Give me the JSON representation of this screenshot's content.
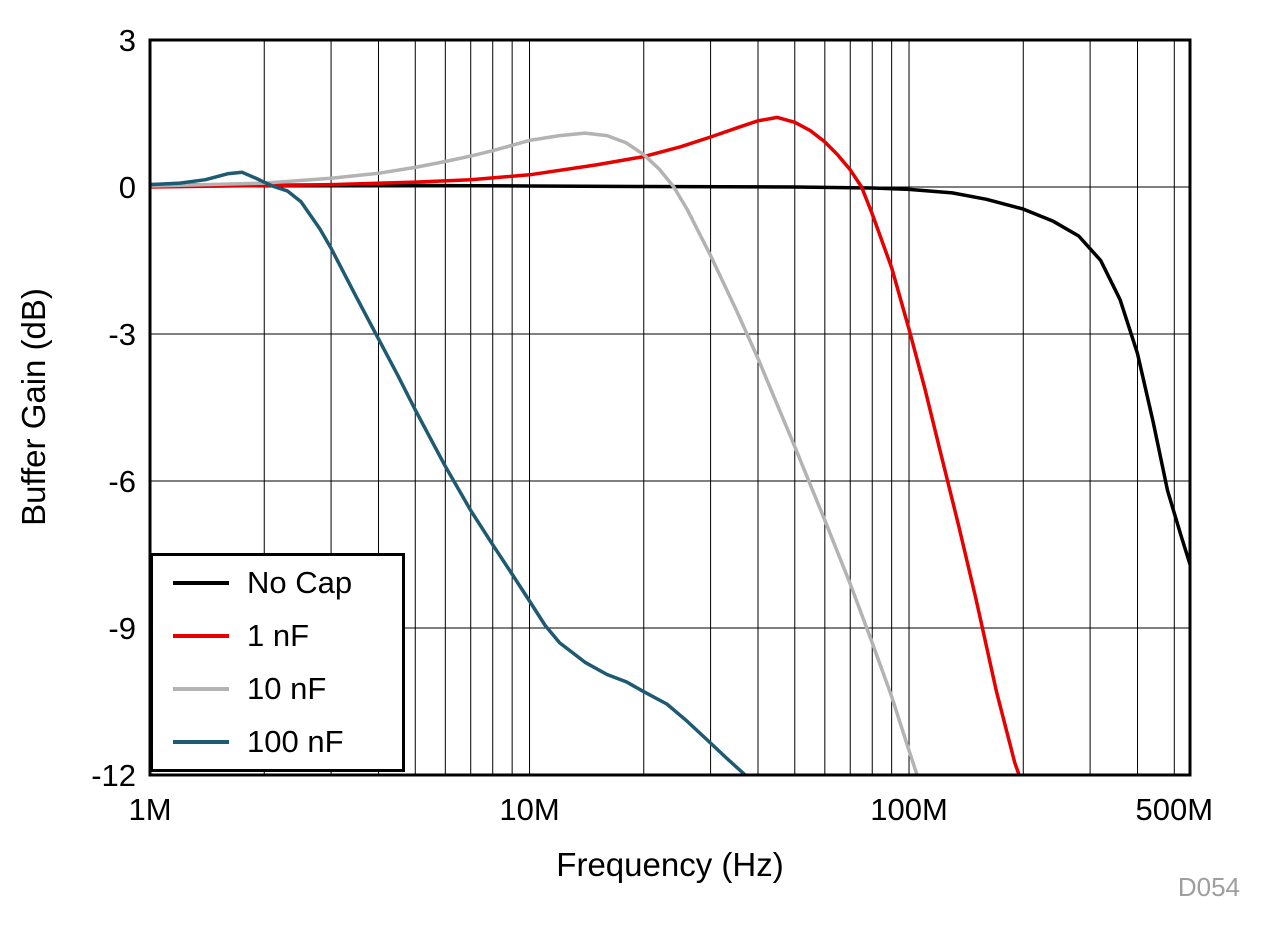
{
  "chart_data": {
    "type": "line",
    "title": "",
    "xlabel": "Frequency (Hz)",
    "ylabel": "Buffer Gain (dB)",
    "x_scale": "log",
    "xlim": [
      1000000.0,
      550000000.0
    ],
    "ylim": [
      -12,
      3
    ],
    "grid": true,
    "legend_position": "bottom-left",
    "figure_id": "D054",
    "x_ticks": [
      {
        "value": 1000000.0,
        "label": "1M"
      },
      {
        "value": 10000000.0,
        "label": "10M"
      },
      {
        "value": 100000000.0,
        "label": "100M"
      },
      {
        "value": 500000000.0,
        "label": "500M"
      }
    ],
    "y_ticks": [
      {
        "value": 3,
        "label": "3"
      },
      {
        "value": 0,
        "label": "0"
      },
      {
        "value": -3,
        "label": "-3"
      },
      {
        "value": -6,
        "label": "-6"
      },
      {
        "value": -9,
        "label": "-9"
      },
      {
        "value": -12,
        "label": "-12"
      }
    ],
    "series": [
      {
        "name": "No Cap",
        "color": "#000000",
        "points": [
          [
            1000000.0,
            0.05
          ],
          [
            2000000.0,
            0.04
          ],
          [
            5000000.0,
            0.03
          ],
          [
            10000000.0,
            0.02
          ],
          [
            20000000.0,
            0.01
          ],
          [
            50000000.0,
            0.0
          ],
          [
            80000000.0,
            -0.02
          ],
          [
            100000000.0,
            -0.05
          ],
          [
            130000000.0,
            -0.12
          ],
          [
            160000000.0,
            -0.25
          ],
          [
            200000000.0,
            -0.45
          ],
          [
            240000000.0,
            -0.7
          ],
          [
            280000000.0,
            -1.0
          ],
          [
            320000000.0,
            -1.5
          ],
          [
            360000000.0,
            -2.3
          ],
          [
            400000000.0,
            -3.4
          ],
          [
            440000000.0,
            -4.8
          ],
          [
            480000000.0,
            -6.2
          ],
          [
            520000000.0,
            -7.1
          ],
          [
            550000000.0,
            -7.7
          ]
        ]
      },
      {
        "name": "1 nF",
        "color": "#e60000",
        "points": [
          [
            1000000.0,
            0.0
          ],
          [
            2000000.0,
            0.03
          ],
          [
            3000000.0,
            0.05
          ],
          [
            5000000.0,
            0.1
          ],
          [
            7000000.0,
            0.15
          ],
          [
            10000000.0,
            0.25
          ],
          [
            15000000.0,
            0.45
          ],
          [
            20000000.0,
            0.62
          ],
          [
            25000000.0,
            0.82
          ],
          [
            30000000.0,
            1.02
          ],
          [
            35000000.0,
            1.2
          ],
          [
            40000000.0,
            1.35
          ],
          [
            45000000.0,
            1.42
          ],
          [
            50000000.0,
            1.32
          ],
          [
            55000000.0,
            1.15
          ],
          [
            60000000.0,
            0.92
          ],
          [
            65000000.0,
            0.65
          ],
          [
            70000000.0,
            0.35
          ],
          [
            75000000.0,
            0.0
          ],
          [
            80000000.0,
            -0.55
          ],
          [
            90000000.0,
            -1.65
          ],
          [
            100000000.0,
            -2.9
          ],
          [
            110000000.0,
            -4.1
          ],
          [
            120000000.0,
            -5.3
          ],
          [
            135000000.0,
            -6.9
          ],
          [
            150000000.0,
            -8.4
          ],
          [
            170000000.0,
            -10.3
          ],
          [
            190000000.0,
            -11.75
          ],
          [
            195000000.0,
            -12
          ]
        ]
      },
      {
        "name": "10 nF",
        "color": "#b3b3b3",
        "points": [
          [
            1000000.0,
            0.02
          ],
          [
            2000000.0,
            0.08
          ],
          [
            3000000.0,
            0.18
          ],
          [
            4000000.0,
            0.28
          ],
          [
            5000000.0,
            0.4
          ],
          [
            6000000.0,
            0.52
          ],
          [
            7000000.0,
            0.63
          ],
          [
            8000000.0,
            0.74
          ],
          [
            10000000.0,
            0.95
          ],
          [
            12000000.0,
            1.05
          ],
          [
            14000000.0,
            1.1
          ],
          [
            16000000.0,
            1.05
          ],
          [
            18000000.0,
            0.9
          ],
          [
            20000000.0,
            0.66
          ],
          [
            22000000.0,
            0.36
          ],
          [
            24000000.0,
            0.0
          ],
          [
            26000000.0,
            -0.45
          ],
          [
            30000000.0,
            -1.4
          ],
          [
            35000000.0,
            -2.5
          ],
          [
            40000000.0,
            -3.5
          ],
          [
            45000000.0,
            -4.45
          ],
          [
            50000000.0,
            -5.3
          ],
          [
            60000000.0,
            -6.8
          ],
          [
            70000000.0,
            -8.1
          ],
          [
            80000000.0,
            -9.3
          ],
          [
            90000000.0,
            -10.4
          ],
          [
            100000000.0,
            -11.5
          ],
          [
            105000000.0,
            -12
          ]
        ]
      },
      {
        "name": "100 nF",
        "color": "#1e5a72",
        "points": [
          [
            1000000.0,
            0.05
          ],
          [
            1200000.0,
            0.08
          ],
          [
            1400000.0,
            0.15
          ],
          [
            1600000.0,
            0.27
          ],
          [
            1750000.0,
            0.3
          ],
          [
            1900000.0,
            0.18
          ],
          [
            2100000.0,
            0.02
          ],
          [
            2300000.0,
            -0.08
          ],
          [
            2500000.0,
            -0.3
          ],
          [
            2800000.0,
            -0.85
          ],
          [
            3000000.0,
            -1.25
          ],
          [
            3500000.0,
            -2.25
          ],
          [
            4000000.0,
            -3.1
          ],
          [
            4500000.0,
            -3.85
          ],
          [
            5000000.0,
            -4.55
          ],
          [
            5500000.0,
            -5.15
          ],
          [
            6000000.0,
            -5.7
          ],
          [
            7000000.0,
            -6.6
          ],
          [
            8000000.0,
            -7.3
          ],
          [
            9000000.0,
            -7.9
          ],
          [
            10000000.0,
            -8.45
          ],
          [
            11000000.0,
            -8.95
          ],
          [
            12000000.0,
            -9.3
          ],
          [
            14000000.0,
            -9.7
          ],
          [
            16000000.0,
            -9.95
          ],
          [
            18000000.0,
            -10.1
          ],
          [
            20000000.0,
            -10.3
          ],
          [
            23000000.0,
            -10.55
          ],
          [
            26000000.0,
            -10.9
          ],
          [
            30000000.0,
            -11.35
          ],
          [
            33000000.0,
            -11.65
          ],
          [
            37000000.0,
            -12
          ]
        ]
      }
    ]
  }
}
